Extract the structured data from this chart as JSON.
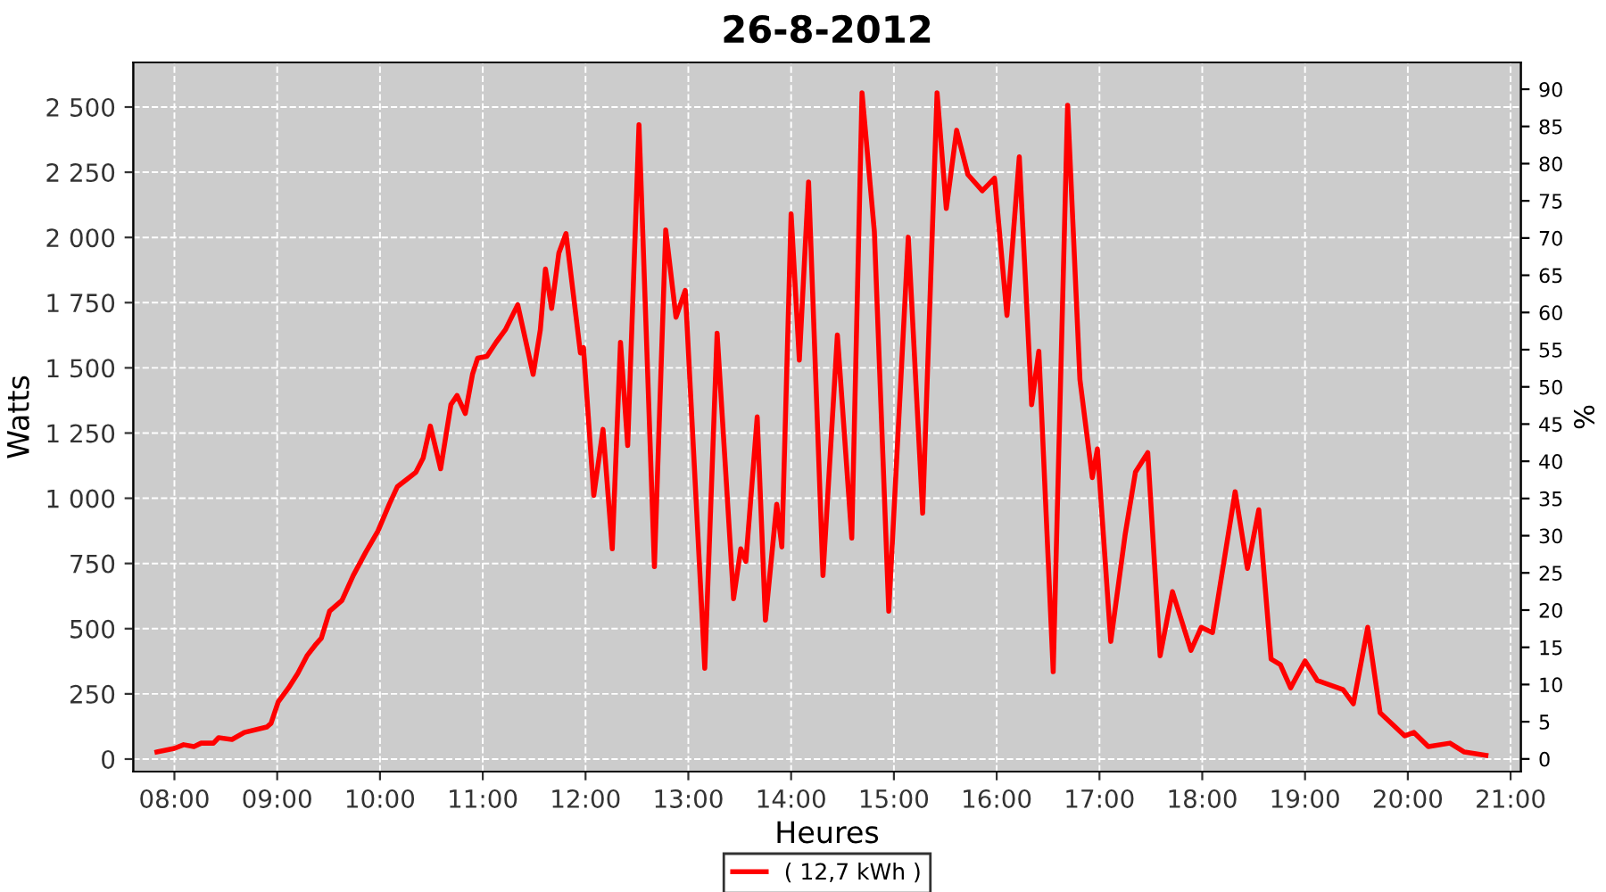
{
  "chart_data": {
    "type": "line",
    "title": "26-8-2012",
    "xlabel": "Heures",
    "ylabel": "Watts",
    "y2label": "%",
    "series": [
      {
        "name": "( 12,7 kWh )",
        "color": "#ff0000",
        "x": [
          7.83,
          8.0,
          8.09,
          8.19,
          8.26,
          8.38,
          8.43,
          8.56,
          8.68,
          8.9,
          8.94,
          9.01,
          9.11,
          9.2,
          9.29,
          9.37,
          9.43,
          9.51,
          9.63,
          9.74,
          9.86,
          9.98,
          10.09,
          10.17,
          10.26,
          10.35,
          10.42,
          10.49,
          10.59,
          10.69,
          10.75,
          10.83,
          10.9,
          10.95,
          11.04,
          11.13,
          11.22,
          11.34,
          11.49,
          11.56,
          11.61,
          11.67,
          11.74,
          11.81,
          11.95,
          11.98,
          12.08,
          12.17,
          12.26,
          12.34,
          12.41,
          12.52,
          12.67,
          12.78,
          12.88,
          12.97,
          13.16,
          13.28,
          13.44,
          13.51,
          13.56,
          13.67,
          13.75,
          13.86,
          13.91,
          14.0,
          14.08,
          14.17,
          14.31,
          14.45,
          14.59,
          14.69,
          14.81,
          14.95,
          15.14,
          15.28,
          15.42,
          15.51,
          15.61,
          15.72,
          15.86,
          15.98,
          16.1,
          16.22,
          16.34,
          16.41,
          16.55,
          16.69,
          16.81,
          16.93,
          16.98,
          17.11,
          17.25,
          17.35,
          17.47,
          17.59,
          17.71,
          17.89,
          17.99,
          18.1,
          18.32,
          18.44,
          18.55,
          18.67,
          18.76,
          18.86,
          19.0,
          19.12,
          19.37,
          19.47,
          19.61,
          19.73,
          19.97,
          20.06,
          20.2,
          20.41,
          20.55,
          20.76
        ],
        "values": [
          27,
          41,
          55,
          48,
          61,
          61,
          82,
          75,
          102,
          123,
          137,
          219,
          273,
          328,
          396,
          437,
          464,
          567,
          608,
          704,
          792,
          874,
          977,
          1045,
          1072,
          1100,
          1154,
          1277,
          1113,
          1359,
          1394,
          1325,
          1475,
          1537,
          1544,
          1598,
          1646,
          1742,
          1475,
          1646,
          1879,
          1728,
          1940,
          2015,
          1557,
          1578,
          1011,
          1264,
          806,
          1598,
          1202,
          2432,
          738,
          2029,
          1694,
          1797,
          348,
          1633,
          615,
          806,
          758,
          1312,
          533,
          977,
          813,
          2090,
          1530,
          2213,
          704,
          1626,
          847,
          2555,
          2022,
          567,
          2001,
          943,
          2555,
          2111,
          2411,
          2241,
          2179,
          2227,
          1701,
          2309,
          1359,
          1564,
          335,
          2507,
          1455,
          1079,
          1189,
          451,
          861,
          1100,
          1175,
          396,
          642,
          417,
          505,
          485,
          1025,
          731,
          956,
          383,
          362,
          273,
          376,
          301,
          266,
          212,
          505,
          178,
          89,
          102,
          48,
          61,
          27,
          14
        ]
      }
    ],
    "xlim": [
      7.6,
      21.1
    ],
    "xticks": [
      {
        "value": 8,
        "label": "08:00"
      },
      {
        "value": 9,
        "label": "09:00"
      },
      {
        "value": 10,
        "label": "10:00"
      },
      {
        "value": 11,
        "label": "11:00"
      },
      {
        "value": 12,
        "label": "12:00"
      },
      {
        "value": 13,
        "label": "13:00"
      },
      {
        "value": 14,
        "label": "14:00"
      },
      {
        "value": 15,
        "label": "15:00"
      },
      {
        "value": 16,
        "label": "16:00"
      },
      {
        "value": 17,
        "label": "17:00"
      },
      {
        "value": 18,
        "label": "18:00"
      },
      {
        "value": 19,
        "label": "19:00"
      },
      {
        "value": 20,
        "label": "20:00"
      },
      {
        "value": 21,
        "label": "21:00"
      }
    ],
    "ylim": [
      -48,
      2671
    ],
    "yticks": [
      0,
      250,
      500,
      750,
      {
        "value": 1000,
        "label": "1 000"
      },
      {
        "value": 1250,
        "label": "1 250"
      },
      {
        "value": 1500,
        "label": "1 500"
      },
      {
        "value": 1750,
        "label": "1 750"
      },
      {
        "value": 2000,
        "label": "2 000"
      },
      {
        "value": 2250,
        "label": "2 250"
      },
      {
        "value": 2500,
        "label": "2 500"
      }
    ],
    "y2lim": [
      -1.7,
      93.6
    ],
    "y2ticks": [
      0,
      5,
      10,
      15,
      20,
      25,
      30,
      35,
      40,
      45,
      50,
      55,
      60,
      65,
      70,
      75,
      80,
      85,
      90
    ],
    "grid": true,
    "legend": "bottom",
    "marker": "none",
    "line_style": "solid"
  }
}
